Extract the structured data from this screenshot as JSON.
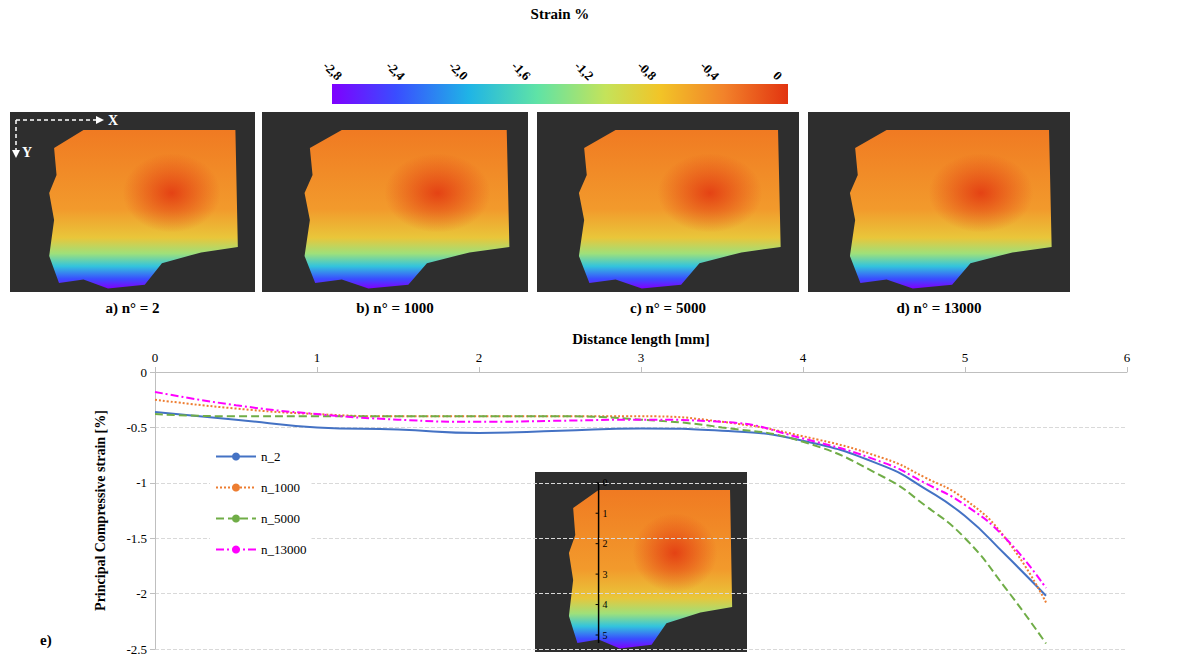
{
  "colorbar_title": "Strain %",
  "colorbar_range": [
    -2.8,
    0
  ],
  "colorbar_ticks": [
    {
      "value": -2.8,
      "label": "-2,8"
    },
    {
      "value": -2.4,
      "label": "-2,4"
    },
    {
      "value": -2.0,
      "label": "-2,0"
    },
    {
      "value": -1.6,
      "label": "-1,6"
    },
    {
      "value": -1.2,
      "label": "-1,2"
    },
    {
      "value": -0.8,
      "label": "-0,8"
    },
    {
      "value": -0.4,
      "label": "-0,4"
    },
    0
  ],
  "direction_labels": {
    "x": "X",
    "y": "Y"
  },
  "panels": [
    {
      "label": "a) n° = 2"
    },
    {
      "label": "b) n° = 1000"
    },
    {
      "label": "c) n° = 5000"
    },
    {
      "label": "d) n° = 13000"
    }
  ],
  "chart_data": {
    "type": "line",
    "panel_label": "e)",
    "xlabel": "Distance length [mm]",
    "ylabel": "Principal Compressive strain [%]",
    "x": [
      0,
      0.5,
      1,
      1.5,
      2,
      2.5,
      3,
      3.5,
      4,
      4.5,
      4.75,
      5,
      5.25,
      5.5
    ],
    "series": [
      {
        "name": "n_2",
        "color": "#4472c4",
        "line_style": "solid",
        "values": [
          -0.36,
          -0.43,
          -0.5,
          -0.52,
          -0.55,
          -0.53,
          -0.51,
          -0.53,
          -0.62,
          -0.85,
          -1.05,
          -1.3,
          -1.65,
          -2.02
        ]
      },
      {
        "name": "n_1000",
        "color": "#ed7d31",
        "line_style": "dotted",
        "values": [
          -0.25,
          -0.33,
          -0.38,
          -0.4,
          -0.4,
          -0.4,
          -0.4,
          -0.45,
          -0.58,
          -0.78,
          -0.95,
          -1.15,
          -1.5,
          -2.08
        ]
      },
      {
        "name": "n_5000",
        "color": "#70ad47",
        "line_style": "dashed",
        "values": [
          -0.38,
          -0.4,
          -0.4,
          -0.4,
          -0.4,
          -0.4,
          -0.43,
          -0.5,
          -0.63,
          -0.95,
          -1.2,
          -1.5,
          -1.95,
          -2.45
        ]
      },
      {
        "name": "n_13000",
        "color": "#ff00ff",
        "line_style": "dashdot",
        "values": [
          -0.18,
          -0.3,
          -0.38,
          -0.43,
          -0.45,
          -0.44,
          -0.43,
          -0.45,
          -0.6,
          -0.82,
          -1.0,
          -1.2,
          -1.5,
          -1.95
        ]
      }
    ],
    "xlim": [
      0,
      6
    ],
    "xticks": [
      0,
      1,
      2,
      3,
      4,
      5,
      6
    ],
    "ylim": [
      -2.5,
      0
    ],
    "yticks": [
      0,
      -0.5,
      -1,
      -1.5,
      -2,
      -2.5
    ],
    "grid": "y",
    "legend": "left",
    "inset_scale_labels": [
      0,
      1,
      2,
      3,
      4,
      5
    ]
  }
}
